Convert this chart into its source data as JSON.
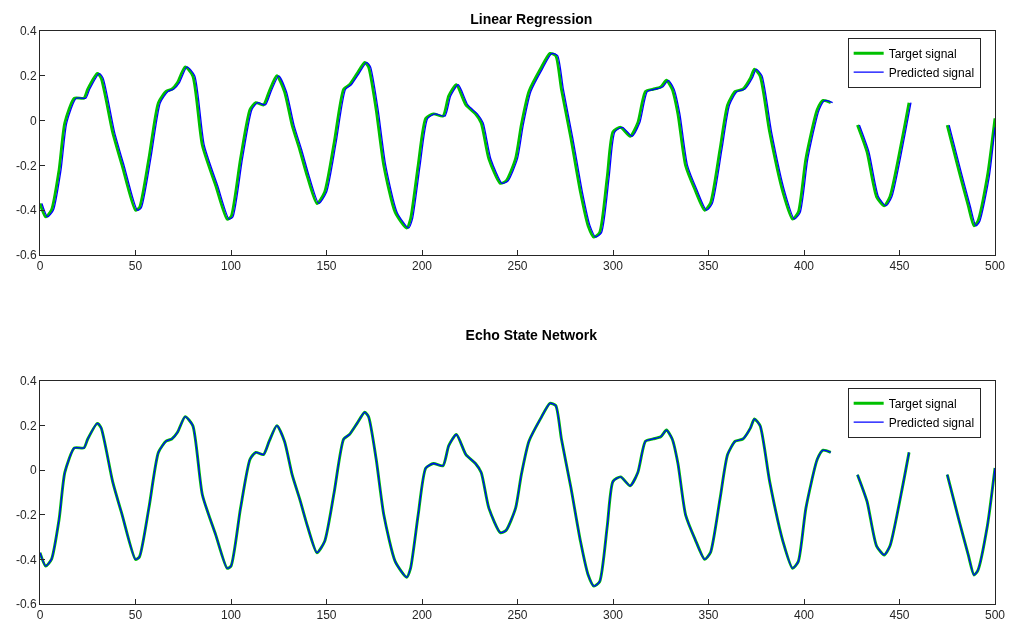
{
  "chart_data": [
    {
      "type": "line",
      "title": "Linear Regression",
      "xlim": [
        0,
        500
      ],
      "ylim": [
        -0.6,
        0.4
      ],
      "xticks": [
        0,
        50,
        100,
        150,
        200,
        250,
        300,
        350,
        400,
        450,
        500
      ],
      "yticks": [
        -0.6,
        -0.4,
        -0.2,
        0,
        0.2,
        0.4
      ],
      "legend": "top right",
      "grid": false,
      "line_style": "solid",
      "x": [
        0,
        3,
        6,
        10,
        13,
        18,
        23,
        25,
        30,
        32,
        38,
        43,
        50,
        52,
        57,
        62,
        66,
        69,
        72,
        76,
        80,
        85,
        92,
        98,
        100,
        105,
        110,
        113,
        117,
        120,
        124,
        128,
        132,
        136,
        140,
        145,
        149,
        154,
        159,
        162,
        166,
        170,
        172,
        176,
        180,
        186,
        192,
        194,
        198,
        202,
        206,
        211,
        214,
        218,
        223,
        228,
        231,
        235,
        241,
        244,
        249,
        252,
        256,
        262,
        267,
        270,
        273,
        278,
        283,
        287,
        290,
        293,
        297,
        300,
        304,
        309,
        313,
        317,
        321,
        325,
        328,
        331,
        334,
        338,
        343,
        348,
        351,
        356,
        360,
        364,
        368,
        372,
        374,
        377,
        382,
        389,
        394,
        397,
        401,
        407,
        410,
        414,
        420,
        428,
        433,
        438,
        442,
        445,
        451,
        455,
        464,
        475,
        481,
        486,
        489,
        491,
        496,
        500
      ],
      "series": [
        {
          "name": "Target signal",
          "color": "#00c000",
          "values": [
            -0.37,
            -0.43,
            -0.4,
            -0.22,
            -0.01,
            0.1,
            0.1,
            0.14,
            0.21,
            0.19,
            -0.05,
            -0.2,
            -0.4,
            -0.39,
            -0.17,
            0.08,
            0.13,
            0.14,
            0.17,
            0.24,
            0.2,
            -0.11,
            -0.29,
            -0.44,
            -0.43,
            -0.17,
            0.05,
            0.08,
            0.07,
            0.13,
            0.2,
            0.13,
            -0.02,
            -0.13,
            -0.25,
            -0.37,
            -0.32,
            -0.1,
            0.14,
            0.16,
            0.21,
            0.26,
            0.24,
            0.05,
            -0.2,
            -0.41,
            -0.48,
            -0.44,
            -0.2,
            0.01,
            0.03,
            0.02,
            0.11,
            0.16,
            0.07,
            0.03,
            -0.01,
            -0.17,
            -0.28,
            -0.27,
            -0.17,
            -0.02,
            0.13,
            0.23,
            0.3,
            0.29,
            0.14,
            -0.08,
            -0.32,
            -0.47,
            -0.52,
            -0.5,
            -0.25,
            -0.05,
            -0.03,
            -0.07,
            -0.01,
            0.13,
            0.14,
            0.15,
            0.18,
            0.14,
            0.03,
            -0.2,
            -0.31,
            -0.4,
            -0.37,
            -0.13,
            0.07,
            0.13,
            0.14,
            0.19,
            0.23,
            0.2,
            -0.05,
            -0.32,
            -0.44,
            -0.41,
            -0.17,
            0.05,
            0.09,
            0.08,
            null,
            -0.02,
            -0.14,
            -0.34,
            -0.38,
            -0.34,
            -0.1,
            0.08,
            null,
            -0.02,
            -0.22,
            -0.38,
            -0.47,
            -0.45,
            -0.25,
            0.01
          ]
        },
        {
          "name": "Predicted signal",
          "color": "#0000ff",
          "x": [
            1,
            4,
            7,
            11,
            14,
            19,
            24,
            26,
            31,
            33,
            39,
            44,
            51,
            53,
            58,
            63,
            67,
            70,
            73,
            77,
            81,
            86,
            93,
            99,
            101,
            106,
            111,
            114,
            118,
            121,
            125,
            129,
            133,
            137,
            141,
            146,
            150,
            155,
            160,
            163,
            167,
            171,
            173,
            177,
            181,
            187,
            193,
            195,
            199,
            203,
            207,
            212,
            215,
            219,
            224,
            229,
            232,
            236,
            242,
            245,
            250,
            253,
            257,
            263,
            268,
            271,
            274,
            279,
            284,
            288,
            291,
            294,
            298,
            301,
            305,
            310,
            314,
            318,
            322,
            326,
            329,
            332,
            335,
            339,
            344,
            349,
            352,
            357,
            361,
            365,
            369,
            373,
            375,
            378,
            383,
            390,
            395,
            398,
            402,
            408,
            411,
            415,
            421,
            429,
            434,
            439,
            443,
            446,
            452,
            456,
            465,
            476,
            482,
            487,
            490,
            492,
            497,
            500
          ],
          "values": [
            -0.37,
            -0.43,
            -0.4,
            -0.22,
            -0.01,
            0.1,
            0.1,
            0.14,
            0.21,
            0.19,
            -0.05,
            -0.2,
            -0.4,
            -0.39,
            -0.17,
            0.08,
            0.13,
            0.14,
            0.17,
            0.24,
            0.2,
            -0.11,
            -0.29,
            -0.44,
            -0.43,
            -0.17,
            0.05,
            0.08,
            0.07,
            0.13,
            0.2,
            0.13,
            -0.02,
            -0.13,
            -0.25,
            -0.37,
            -0.32,
            -0.1,
            0.14,
            0.16,
            0.21,
            0.26,
            0.24,
            0.05,
            -0.2,
            -0.41,
            -0.48,
            -0.44,
            -0.2,
            0.01,
            0.03,
            0.02,
            0.11,
            0.16,
            0.07,
            0.03,
            -0.01,
            -0.17,
            -0.28,
            -0.27,
            -0.17,
            -0.02,
            0.13,
            0.23,
            0.3,
            0.29,
            0.14,
            -0.08,
            -0.32,
            -0.47,
            -0.52,
            -0.5,
            -0.25,
            -0.05,
            -0.03,
            -0.07,
            -0.01,
            0.13,
            0.14,
            0.15,
            0.18,
            0.14,
            0.03,
            -0.2,
            -0.31,
            -0.4,
            -0.37,
            -0.13,
            0.07,
            0.13,
            0.14,
            0.19,
            0.23,
            0.2,
            -0.05,
            -0.32,
            -0.44,
            -0.41,
            -0.17,
            0.05,
            0.09,
            0.08,
            null,
            -0.02,
            -0.14,
            -0.34,
            -0.38,
            -0.34,
            -0.1,
            0.08,
            null,
            -0.02,
            -0.22,
            -0.38,
            -0.47,
            -0.45,
            -0.25,
            -0.03
          ]
        }
      ]
    },
    {
      "type": "line",
      "title": "Echo State Network",
      "xlim": [
        0,
        500
      ],
      "ylim": [
        -0.6,
        0.4
      ],
      "xticks": [
        0,
        50,
        100,
        150,
        200,
        250,
        300,
        350,
        400,
        450,
        500
      ],
      "yticks": [
        -0.6,
        -0.4,
        -0.2,
        0,
        0.2,
        0.4
      ],
      "legend": "top right",
      "grid": false,
      "line_style": "solid",
      "x": [
        0,
        3,
        6,
        10,
        13,
        18,
        23,
        25,
        30,
        32,
        38,
        43,
        50,
        52,
        57,
        62,
        66,
        69,
        72,
        76,
        80,
        85,
        92,
        98,
        100,
        105,
        110,
        113,
        117,
        120,
        124,
        128,
        132,
        136,
        140,
        145,
        149,
        154,
        159,
        162,
        166,
        170,
        172,
        176,
        180,
        186,
        192,
        194,
        198,
        202,
        206,
        211,
        214,
        218,
        223,
        228,
        231,
        235,
        241,
        244,
        249,
        252,
        256,
        262,
        267,
        270,
        273,
        278,
        283,
        287,
        290,
        293,
        297,
        300,
        304,
        309,
        313,
        317,
        321,
        325,
        328,
        331,
        334,
        338,
        343,
        348,
        351,
        356,
        360,
        364,
        368,
        372,
        374,
        377,
        382,
        389,
        394,
        397,
        401,
        407,
        410,
        414,
        420,
        428,
        433,
        438,
        442,
        445,
        451,
        455,
        464,
        475,
        481,
        486,
        489,
        491,
        496,
        500
      ],
      "series": [
        {
          "name": "Target signal",
          "color": "#00c000",
          "values": [
            -0.37,
            -0.43,
            -0.4,
            -0.22,
            -0.01,
            0.1,
            0.1,
            0.14,
            0.21,
            0.19,
            -0.05,
            -0.2,
            -0.4,
            -0.39,
            -0.17,
            0.08,
            0.13,
            0.14,
            0.17,
            0.24,
            0.2,
            -0.11,
            -0.29,
            -0.44,
            -0.43,
            -0.17,
            0.05,
            0.08,
            0.07,
            0.13,
            0.2,
            0.13,
            -0.02,
            -0.13,
            -0.25,
            -0.37,
            -0.32,
            -0.1,
            0.14,
            0.16,
            0.21,
            0.26,
            0.24,
            0.05,
            -0.2,
            -0.41,
            -0.48,
            -0.44,
            -0.2,
            0.01,
            0.03,
            0.02,
            0.11,
            0.16,
            0.07,
            0.03,
            -0.01,
            -0.17,
            -0.28,
            -0.27,
            -0.17,
            -0.02,
            0.13,
            0.23,
            0.3,
            0.29,
            0.14,
            -0.08,
            -0.32,
            -0.47,
            -0.52,
            -0.5,
            -0.25,
            -0.05,
            -0.03,
            -0.07,
            -0.01,
            0.13,
            0.14,
            0.15,
            0.18,
            0.14,
            0.03,
            -0.2,
            -0.31,
            -0.4,
            -0.37,
            -0.13,
            0.07,
            0.13,
            0.14,
            0.19,
            0.23,
            0.2,
            -0.05,
            -0.32,
            -0.44,
            -0.41,
            -0.17,
            0.05,
            0.09,
            0.08,
            null,
            -0.02,
            -0.14,
            -0.34,
            -0.38,
            -0.34,
            -0.1,
            0.08,
            null,
            -0.02,
            -0.22,
            -0.38,
            -0.47,
            -0.45,
            -0.25,
            0.01
          ]
        },
        {
          "name": "Predicted signal",
          "color": "#0000ff",
          "values": [
            -0.37,
            -0.43,
            -0.4,
            -0.22,
            -0.01,
            0.1,
            0.1,
            0.14,
            0.21,
            0.19,
            -0.05,
            -0.2,
            -0.4,
            -0.39,
            -0.17,
            0.08,
            0.13,
            0.14,
            0.17,
            0.24,
            0.2,
            -0.11,
            -0.29,
            -0.44,
            -0.43,
            -0.17,
            0.05,
            0.08,
            0.07,
            0.13,
            0.2,
            0.13,
            -0.02,
            -0.13,
            -0.25,
            -0.37,
            -0.32,
            -0.1,
            0.14,
            0.16,
            0.21,
            0.26,
            0.24,
            0.05,
            -0.2,
            -0.41,
            -0.48,
            -0.44,
            -0.2,
            0.01,
            0.03,
            0.02,
            0.11,
            0.16,
            0.07,
            0.03,
            -0.01,
            -0.17,
            -0.28,
            -0.27,
            -0.17,
            -0.02,
            0.13,
            0.23,
            0.3,
            0.29,
            0.14,
            -0.08,
            -0.32,
            -0.47,
            -0.52,
            -0.5,
            -0.25,
            -0.05,
            -0.03,
            -0.07,
            -0.01,
            0.13,
            0.14,
            0.15,
            0.18,
            0.14,
            0.03,
            -0.2,
            -0.31,
            -0.4,
            -0.37,
            -0.13,
            0.07,
            0.13,
            0.14,
            0.19,
            0.23,
            0.2,
            -0.05,
            -0.32,
            -0.44,
            -0.41,
            -0.17,
            0.05,
            0.09,
            0.08,
            null,
            -0.02,
            -0.14,
            -0.34,
            -0.38,
            -0.34,
            -0.1,
            0.08,
            null,
            -0.02,
            -0.22,
            -0.38,
            -0.47,
            -0.45,
            -0.25,
            0.01
          ]
        }
      ]
    }
  ]
}
